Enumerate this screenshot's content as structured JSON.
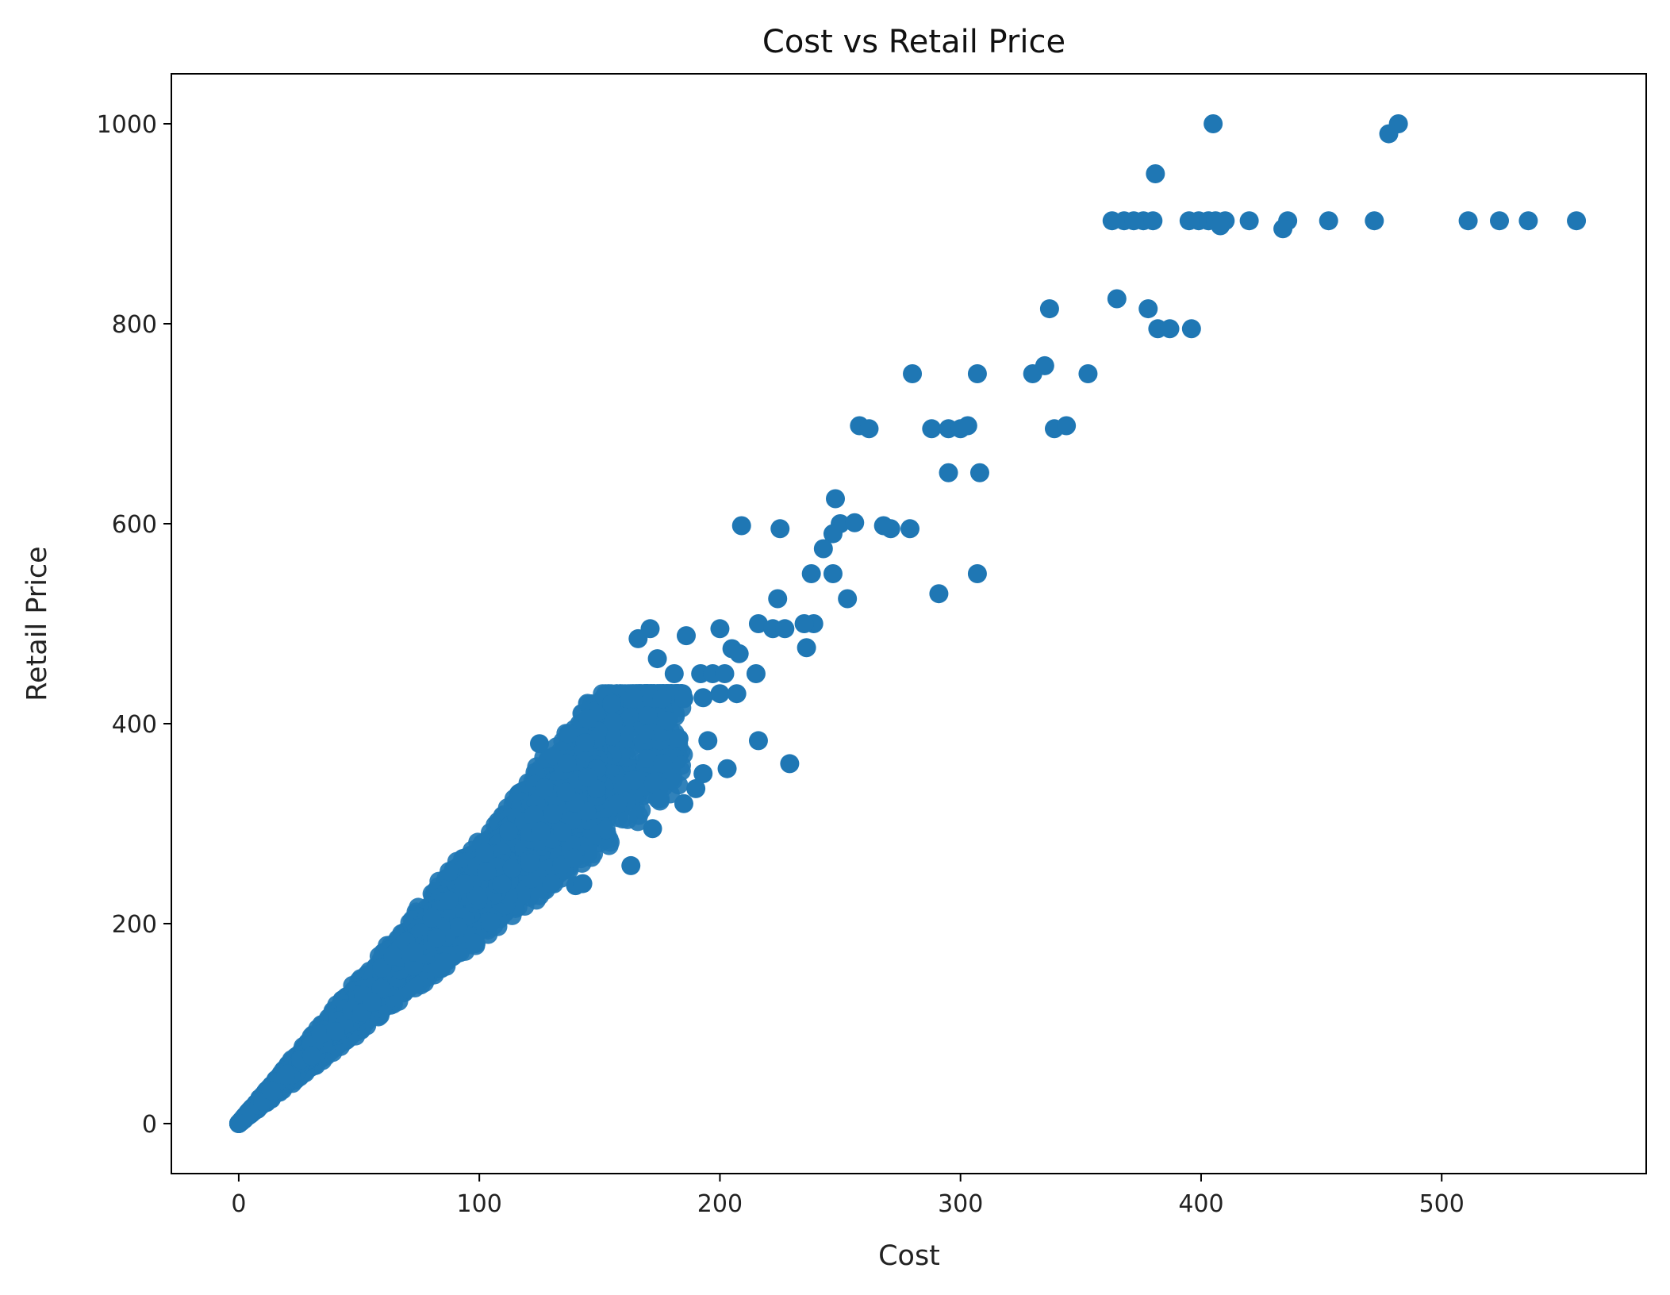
{
  "chart_data": {
    "type": "scatter",
    "title": "Cost vs Retail Price",
    "xlabel": "Cost",
    "ylabel": "Retail Price",
    "xlim": [
      -28,
      585
    ],
    "ylim": [
      -50,
      1050
    ],
    "xticks": [
      0,
      100,
      200,
      300,
      400,
      500
    ],
    "yticks": [
      0,
      200,
      400,
      600,
      800,
      1000
    ],
    "grid": false,
    "legend": "none",
    "marker_color": "#1f77b4",
    "dense_region": {
      "description_points": [
        [
          0,
          0
        ],
        [
          50,
          140
        ],
        [
          100,
          290
        ],
        [
          150,
          390
        ],
        [
          180,
          400
        ]
      ],
      "main_ratio": 2.5,
      "upper_ratio": 2.85,
      "lower_ratio": 1.85,
      "x_max": 185
    },
    "points": [
      [
        405,
        1000
      ],
      [
        482,
        1000
      ],
      [
        478,
        990
      ],
      [
        381,
        950
      ],
      [
        363,
        903
      ],
      [
        368,
        903
      ],
      [
        372,
        903
      ],
      [
        376,
        903
      ],
      [
        380,
        903
      ],
      [
        395,
        903
      ],
      [
        399,
        903
      ],
      [
        403,
        903
      ],
      [
        406,
        903
      ],
      [
        410,
        903
      ],
      [
        420,
        903
      ],
      [
        436,
        903
      ],
      [
        453,
        903
      ],
      [
        472,
        903
      ],
      [
        511,
        903
      ],
      [
        524,
        903
      ],
      [
        536,
        903
      ],
      [
        556,
        903
      ],
      [
        408,
        898
      ],
      [
        434,
        895
      ],
      [
        365,
        825
      ],
      [
        337,
        815
      ],
      [
        378,
        815
      ],
      [
        382,
        795
      ],
      [
        387,
        795
      ],
      [
        396,
        795
      ],
      [
        280,
        750
      ],
      [
        307,
        750
      ],
      [
        330,
        750
      ],
      [
        353,
        750
      ],
      [
        335,
        758
      ],
      [
        258,
        698
      ],
      [
        262,
        695
      ],
      [
        288,
        695
      ],
      [
        295,
        695
      ],
      [
        300,
        695
      ],
      [
        303,
        698
      ],
      [
        339,
        695
      ],
      [
        344,
        698
      ],
      [
        295,
        651
      ],
      [
        308,
        651
      ],
      [
        248,
        625
      ],
      [
        209,
        598
      ],
      [
        225,
        595
      ],
      [
        250,
        600
      ],
      [
        256,
        601
      ],
      [
        268,
        598
      ],
      [
        271,
        595
      ],
      [
        279,
        595
      ],
      [
        247,
        590
      ],
      [
        243,
        575
      ],
      [
        238,
        550
      ],
      [
        247,
        550
      ],
      [
        307,
        550
      ],
      [
        253,
        525
      ],
      [
        224,
        525
      ],
      [
        291,
        530
      ],
      [
        171,
        495
      ],
      [
        200,
        495
      ],
      [
        216,
        500
      ],
      [
        222,
        495
      ],
      [
        227,
        495
      ],
      [
        239,
        500
      ],
      [
        235,
        500
      ],
      [
        166,
        485
      ],
      [
        186,
        488
      ],
      [
        205,
        475
      ],
      [
        208,
        470
      ],
      [
        236,
        476
      ],
      [
        174,
        465
      ],
      [
        181,
        450
      ],
      [
        192,
        450
      ],
      [
        197,
        450
      ],
      [
        202,
        450
      ],
      [
        215,
        450
      ],
      [
        152,
        427
      ],
      [
        164,
        425
      ],
      [
        172,
        425
      ],
      [
        176,
        425
      ],
      [
        155,
        420
      ],
      [
        185,
        425
      ],
      [
        200,
        430
      ],
      [
        207,
        430
      ],
      [
        193,
        426
      ],
      [
        145,
        405
      ],
      [
        170,
        408
      ],
      [
        137,
        390
      ],
      [
        125,
        380
      ],
      [
        216,
        383
      ],
      [
        195,
        383
      ],
      [
        183,
        385
      ],
      [
        203,
        355
      ],
      [
        229,
        360
      ],
      [
        193,
        350
      ],
      [
        190,
        335
      ],
      [
        185,
        320
      ],
      [
        172,
        295
      ],
      [
        163,
        258
      ],
      [
        130,
        240
      ],
      [
        140,
        238
      ],
      [
        143,
        240
      ]
    ]
  }
}
